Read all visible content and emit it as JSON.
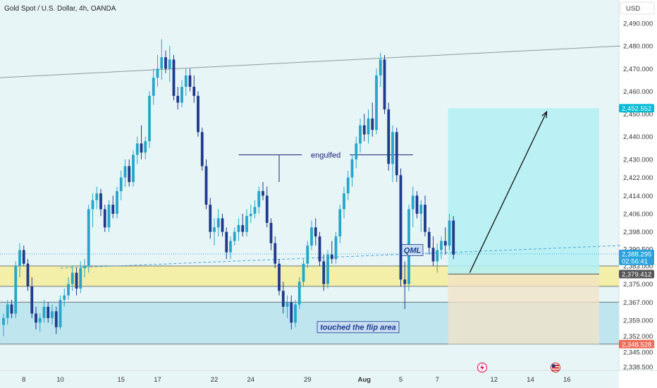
{
  "chart_data": {
    "type": "candlestick",
    "title": "Gold Spot / U.S. Dollar, 4h, OANDA",
    "currency": "USD",
    "y_ticks": [
      2338.5,
      2345.0,
      2352.0,
      2359.0,
      2367.0,
      2375.0,
      2383.0,
      2390.5,
      2398.0,
      2406.0,
      2414.0,
      2422.0,
      2430.0,
      2440.0,
      2450.0,
      2460.0,
      2470.0,
      2480.0,
      2490.0
    ],
    "y_tick_labels": [
      "2,338.500",
      "2,345.000",
      "2,352.000",
      "2,359.000",
      "2,367.000",
      "2,375.000",
      "2,383.000",
      "2,390.500",
      "2,398.000",
      "2,406.000",
      "2,414.000",
      "2,422.000",
      "2,430.000",
      "2,440.000",
      "2,450.000",
      "2,460.000",
      "2,470.000",
      "2,480.000",
      "2,490.000"
    ],
    "x_labels": [
      "8",
      "10",
      "15",
      "17",
      "22",
      "24",
      "29",
      "Aug",
      "5",
      "7",
      "12",
      "14",
      "16"
    ],
    "x_label_bars": [
      5,
      14,
      29,
      38,
      52,
      61,
      75,
      89,
      98,
      107,
      121,
      130,
      139
    ],
    "candles_ohlc": [
      [
        2357,
        2362,
        2352,
        2360
      ],
      [
        2360,
        2368,
        2357,
        2366
      ],
      [
        2366,
        2368,
        2360,
        2362
      ],
      [
        2362,
        2385,
        2360,
        2383
      ],
      [
        2383,
        2393,
        2378,
        2390
      ],
      [
        2390,
        2392,
        2383,
        2384
      ],
      [
        2384,
        2386,
        2372,
        2374
      ],
      [
        2374,
        2378,
        2360,
        2362
      ],
      [
        2362,
        2365,
        2355,
        2358
      ],
      [
        2358,
        2362,
        2354,
        2360
      ],
      [
        2360,
        2368,
        2358,
        2365
      ],
      [
        2365,
        2367,
        2358,
        2360
      ],
      [
        2360,
        2366,
        2357,
        2363
      ],
      [
        2363,
        2365,
        2353,
        2356
      ],
      [
        2356,
        2370,
        2355,
        2368
      ],
      [
        2368,
        2373,
        2365,
        2370
      ],
      [
        2370,
        2378,
        2368,
        2375
      ],
      [
        2375,
        2383,
        2372,
        2380
      ],
      [
        2380,
        2382,
        2370,
        2373
      ],
      [
        2373,
        2385,
        2371,
        2382
      ],
      [
        2382,
        2386,
        2378,
        2383
      ],
      [
        2383,
        2410,
        2380,
        2408
      ],
      [
        2408,
        2415,
        2400,
        2412
      ],
      [
        2412,
        2418,
        2408,
        2415
      ],
      [
        2415,
        2417,
        2405,
        2408
      ],
      [
        2408,
        2410,
        2398,
        2400
      ],
      [
        2400,
        2412,
        2398,
        2410
      ],
      [
        2410,
        2414,
        2404,
        2406
      ],
      [
        2406,
        2418,
        2404,
        2416
      ],
      [
        2416,
        2425,
        2412,
        2422
      ],
      [
        2422,
        2430,
        2418,
        2427
      ],
      [
        2427,
        2430,
        2418,
        2420
      ],
      [
        2420,
        2434,
        2418,
        2432
      ],
      [
        2432,
        2440,
        2428,
        2437
      ],
      [
        2437,
        2445,
        2430,
        2433
      ],
      [
        2433,
        2440,
        2430,
        2438
      ],
      [
        2438,
        2460,
        2435,
        2458
      ],
      [
        2458,
        2470,
        2454,
        2466
      ],
      [
        2466,
        2476,
        2462,
        2470
      ],
      [
        2470,
        2483,
        2465,
        2475
      ],
      [
        2475,
        2478,
        2468,
        2470
      ],
      [
        2470,
        2480,
        2464,
        2474
      ],
      [
        2474,
        2476,
        2456,
        2458
      ],
      [
        2458,
        2462,
        2452,
        2455
      ],
      [
        2455,
        2465,
        2453,
        2462
      ],
      [
        2462,
        2470,
        2458,
        2467
      ],
      [
        2467,
        2470,
        2460,
        2462
      ],
      [
        2462,
        2467,
        2455,
        2458
      ],
      [
        2458,
        2460,
        2440,
        2442
      ],
      [
        2442,
        2444,
        2425,
        2427
      ],
      [
        2427,
        2430,
        2408,
        2410
      ],
      [
        2410,
        2413,
        2395,
        2398
      ],
      [
        2398,
        2404,
        2392,
        2400
      ],
      [
        2400,
        2408,
        2396,
        2404
      ],
      [
        2404,
        2406,
        2396,
        2398
      ],
      [
        2398,
        2400,
        2386,
        2389
      ],
      [
        2389,
        2396,
        2386,
        2394
      ],
      [
        2394,
        2400,
        2392,
        2398
      ],
      [
        2398,
        2404,
        2394,
        2401
      ],
      [
        2401,
        2406,
        2396,
        2398
      ],
      [
        2398,
        2408,
        2396,
        2405
      ],
      [
        2405,
        2410,
        2402,
        2406
      ],
      [
        2406,
        2412,
        2404,
        2409
      ],
      [
        2409,
        2418,
        2406,
        2416
      ],
      [
        2416,
        2420,
        2412,
        2414
      ],
      [
        2414,
        2418,
        2400,
        2402
      ],
      [
        2402,
        2404,
        2390,
        2393
      ],
      [
        2393,
        2396,
        2382,
        2384
      ],
      [
        2384,
        2386,
        2370,
        2372
      ],
      [
        2372,
        2376,
        2362,
        2365
      ],
      [
        2365,
        2370,
        2360,
        2367
      ],
      [
        2367,
        2370,
        2355,
        2358
      ],
      [
        2358,
        2368,
        2356,
        2366
      ],
      [
        2366,
        2378,
        2364,
        2376
      ],
      [
        2376,
        2386,
        2374,
        2384
      ],
      [
        2384,
        2394,
        2382,
        2392
      ],
      [
        2392,
        2403,
        2390,
        2400
      ],
      [
        2400,
        2404,
        2392,
        2396
      ],
      [
        2396,
        2398,
        2383,
        2385
      ],
      [
        2385,
        2388,
        2372,
        2375
      ],
      [
        2375,
        2390,
        2373,
        2388
      ],
      [
        2388,
        2394,
        2384,
        2386
      ],
      [
        2386,
        2398,
        2384,
        2396
      ],
      [
        2396,
        2410,
        2393,
        2408
      ],
      [
        2408,
        2418,
        2404,
        2415
      ],
      [
        2415,
        2425,
        2412,
        2422
      ],
      [
        2422,
        2432,
        2418,
        2430
      ],
      [
        2430,
        2440,
        2426,
        2437
      ],
      [
        2437,
        2448,
        2433,
        2445
      ],
      [
        2445,
        2450,
        2438,
        2441
      ],
      [
        2441,
        2452,
        2437,
        2448
      ],
      [
        2448,
        2455,
        2440,
        2443
      ],
      [
        2443,
        2470,
        2441,
        2467
      ],
      [
        2467,
        2477,
        2462,
        2474
      ],
      [
        2474,
        2476,
        2450,
        2452
      ],
      [
        2452,
        2455,
        2425,
        2428
      ],
      [
        2428,
        2445,
        2420,
        2442
      ],
      [
        2442,
        2444,
        2420,
        2423
      ],
      [
        2423,
        2426,
        2374,
        2377
      ],
      [
        2377,
        2385,
        2364,
        2375
      ],
      [
        2375,
        2410,
        2372,
        2408
      ],
      [
        2408,
        2418,
        2400,
        2414
      ],
      [
        2414,
        2416,
        2404,
        2406
      ],
      [
        2406,
        2412,
        2398,
        2410
      ],
      [
        2410,
        2414,
        2396,
        2398
      ],
      [
        2398,
        2400,
        2388,
        2391
      ],
      [
        2391,
        2396,
        2383,
        2385
      ],
      [
        2385,
        2393,
        2380,
        2390
      ],
      [
        2390,
        2396,
        2386,
        2394
      ],
      [
        2394,
        2400,
        2388,
        2392
      ],
      [
        2392,
        2406,
        2390,
        2403
      ],
      [
        2403,
        2405,
        2386,
        2388
      ]
    ],
    "trendline_resistance": [
      [
        0,
        2466.0
      ],
      [
        147,
        2480.0
      ]
    ],
    "trendline_support": [
      [
        14,
        2382.0
      ],
      [
        147,
        2392.0
      ]
    ],
    "zone_qml": [
      2374.0,
      2383.0
    ],
    "zone_flip": [
      2348.528,
      2367.0
    ],
    "long_position": {
      "entry": 2379.412,
      "target": 2452.552,
      "stop": 2348.528,
      "start_bar": 110
    },
    "arrow_path": {
      "from": [
        115,
        2380.0
      ],
      "to": [
        134,
        2451.0
      ]
    },
    "engulfed_line": {
      "price": 2432.0,
      "from_bar": 58,
      "to_bar": 101
    },
    "annotations": {
      "engulfed": "engulfed",
      "qml": "QML",
      "flip": "touched the flip area"
    },
    "price_tags": [
      {
        "price": 2452.552,
        "label": "2,452.552",
        "color": "#00bcd4"
      },
      {
        "price": 2388.295,
        "label": "2,388.295",
        "sub": "02:56:41",
        "color": "#29a3e0"
      },
      {
        "price": 2379.412,
        "label": "2,379.412",
        "color": "#555555"
      },
      {
        "price": 2348.528,
        "label": "2,348.528",
        "color": "#ef6c58"
      }
    ],
    "colors": {
      "up": "#26a6c9",
      "down": "#1e3a8a",
      "qml_zone": "#f4efa8",
      "flip_zone": "#bfe6ef",
      "target_zone": "#b3f0f3",
      "stop_zone": "#f3e1c6"
    }
  }
}
